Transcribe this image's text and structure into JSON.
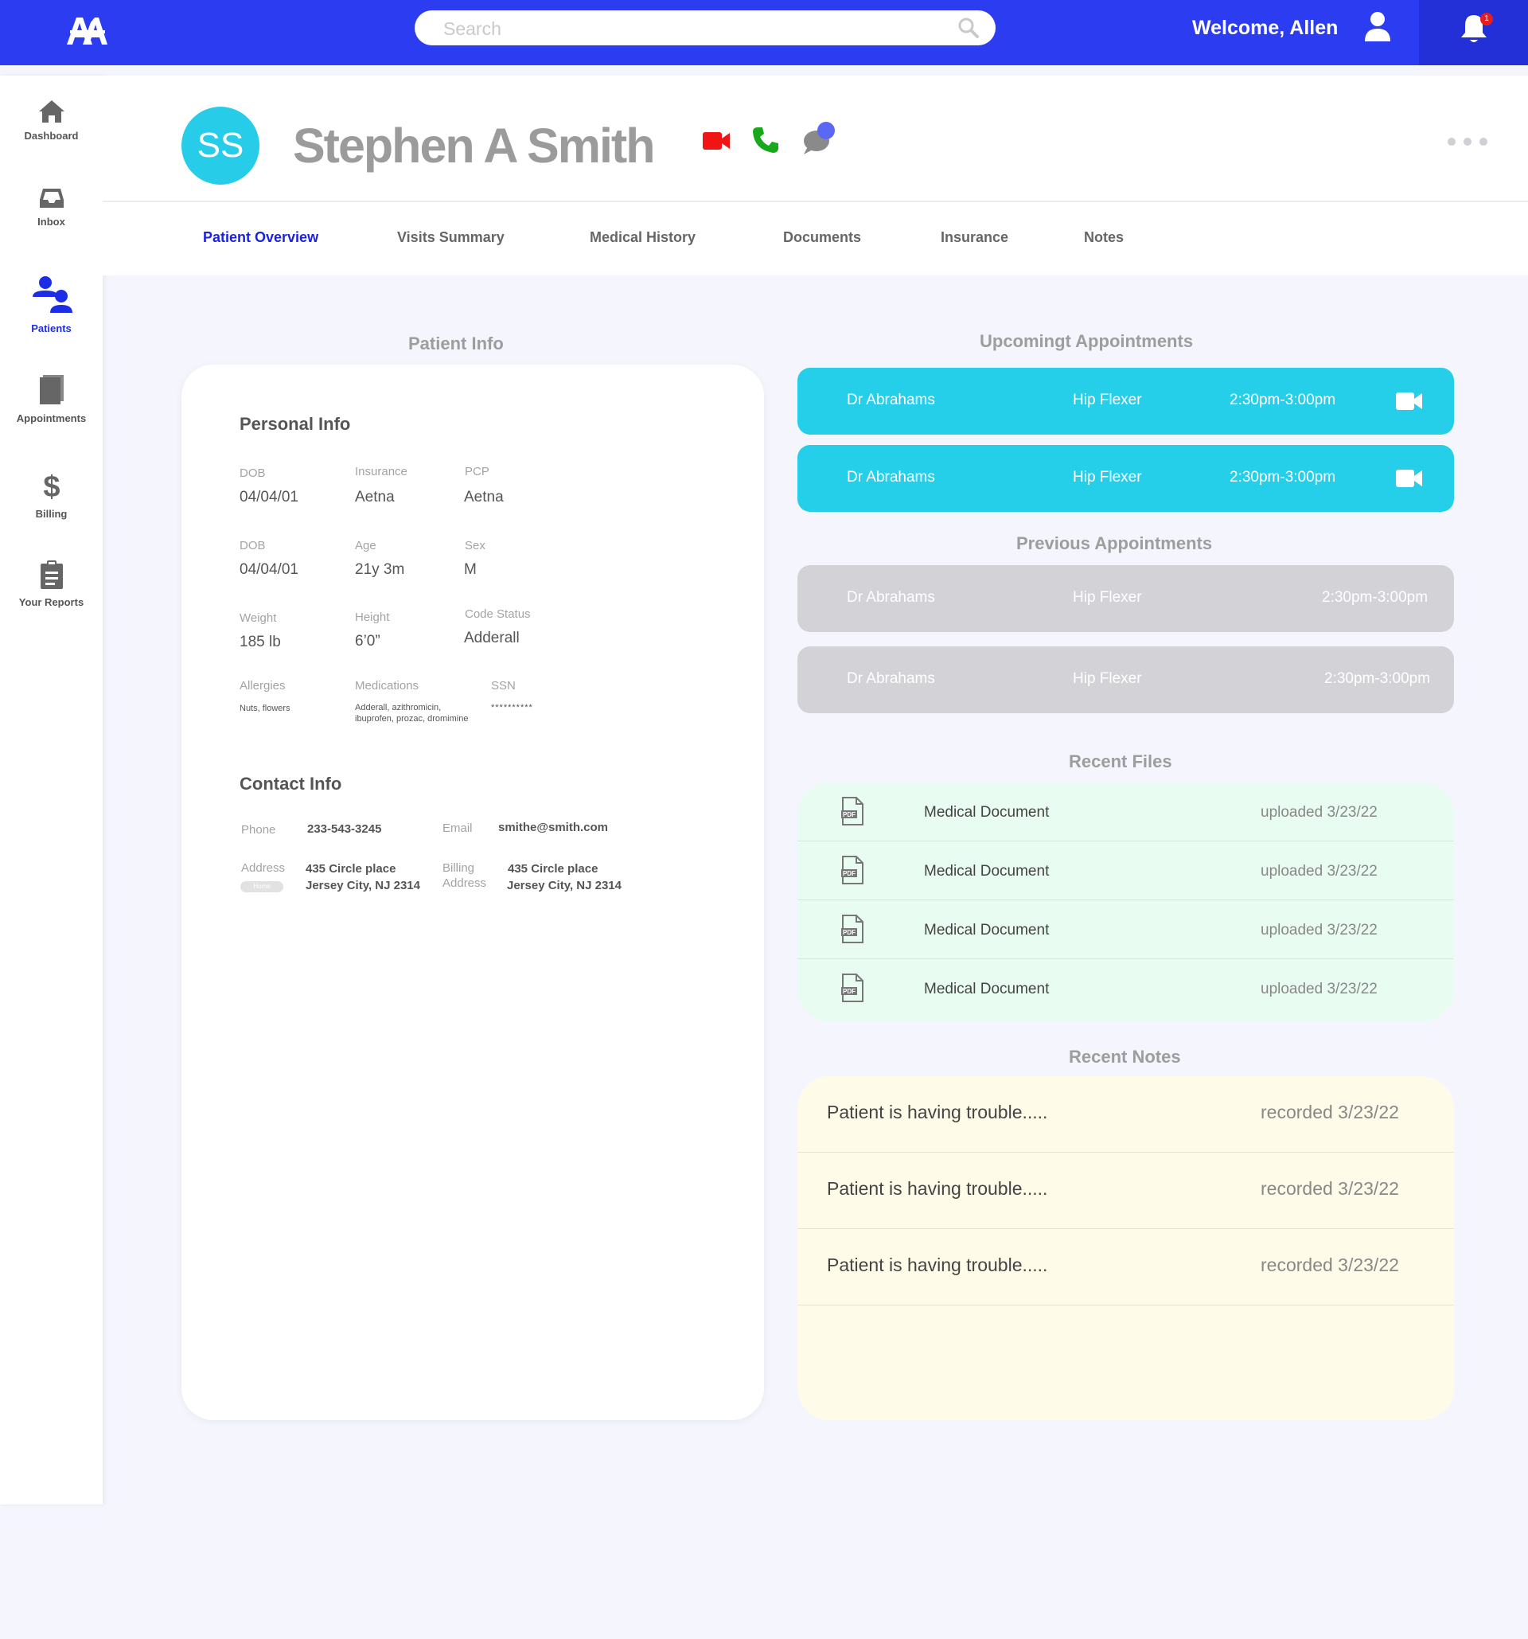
{
  "topbar": {
    "logo_text": "AA",
    "search_placeholder": "Search",
    "welcome": "Welcome, Allen",
    "notification_count": "1"
  },
  "sidebar": {
    "items": [
      {
        "label": "Dashboard",
        "icon": "home-icon"
      },
      {
        "label": "Inbox",
        "icon": "inbox-icon"
      },
      {
        "label": "Patients",
        "icon": "patients-icon",
        "active": true
      },
      {
        "label": "Appointments",
        "icon": "book-icon"
      },
      {
        "label": "Billing",
        "icon": "dollar-icon"
      },
      {
        "label": "Your Reports",
        "icon": "clipboard-icon"
      }
    ]
  },
  "patient": {
    "initials": "SS",
    "name": "Stephen A Smith"
  },
  "tabs": [
    {
      "label": "Patient Overview",
      "active": true
    },
    {
      "label": "Visits Summary"
    },
    {
      "label": "Medical History"
    },
    {
      "label": "Documents"
    },
    {
      "label": "Insurance"
    },
    {
      "label": "Notes"
    }
  ],
  "patient_info": {
    "title": "Patient Info",
    "personal_heading": "Personal Info",
    "row1": {
      "dob_label": "DOB",
      "dob": "04/04/01",
      "insurance_label": "Insurance",
      "insurance": "Aetna",
      "pcp_label": "PCP",
      "pcp": "Aetna"
    },
    "row2": {
      "dob_label": "DOB",
      "dob": "04/04/01",
      "age_label": "Age",
      "age": "21y 3m",
      "sex_label": "Sex",
      "sex": "M"
    },
    "row3": {
      "weight_label": "Weight",
      "weight": "185 lb",
      "height_label": "Height",
      "height": "6’0”",
      "code_status_label": "Code Status",
      "code_status": "Adderall"
    },
    "row4": {
      "allergies_label": "Allergies",
      "allergies": "Nuts, flowers",
      "medications_label": "Medications",
      "medications_line1": "Adderall, azithromicin,",
      "medications_line2": "ibuprofen, prozac, dromimine",
      "ssn_label": "SSN",
      "ssn": "**********"
    },
    "contact_heading": "Contact Info",
    "phone_label": "Phone",
    "phone": "233-543-3245",
    "email_label": "Email",
    "email": "smithe@smith.com",
    "address_label": "Address",
    "address_tag": "Home",
    "address_line1": "435 Circle place",
    "address_line2": "Jersey City, NJ 2314",
    "billing_label_line1": "Billing",
    "billing_label_line2": "Address",
    "billing_line1": "435 Circle place",
    "billing_line2": "Jersey City, NJ 2314"
  },
  "upcoming": {
    "title": "Upcomingt Appointments",
    "items": [
      {
        "doctor": "Dr Abrahams",
        "reason": "Hip Flexer",
        "time": "2:30pm-3:00pm"
      },
      {
        "doctor": "Dr Abrahams",
        "reason": "Hip Flexer",
        "time": "2:30pm-3:00pm"
      }
    ]
  },
  "previous": {
    "title": "Previous Appointments",
    "items": [
      {
        "doctor": "Dr Abrahams",
        "reason": "Hip Flexer",
        "time": "2:30pm-3:00pm"
      },
      {
        "doctor": "Dr Abrahams",
        "reason": "Hip Flexer",
        "time": "2:30pm-3:00pm"
      }
    ]
  },
  "files": {
    "title": "Recent Files",
    "icon_label": "PDF",
    "items": [
      {
        "name": "Medical Document",
        "date": "uploaded 3/23/22"
      },
      {
        "name": "Medical Document",
        "date": "uploaded 3/23/22"
      },
      {
        "name": "Medical Document",
        "date": "uploaded 3/23/22"
      },
      {
        "name": "Medical Document",
        "date": "uploaded 3/23/22"
      }
    ]
  },
  "notes": {
    "title": "Recent Notes",
    "items": [
      {
        "text": "Patient is having trouble.....",
        "date": "recorded 3/23/22"
      },
      {
        "text": "Patient is having trouble.....",
        "date": "recorded 3/23/22"
      },
      {
        "text": "Patient is having trouble.....",
        "date": "recorded 3/23/22"
      }
    ]
  },
  "colors": {
    "topbar": "#2c3cf0",
    "accent_blue": "#1a22e0",
    "upcoming_card": "#26cfe9",
    "previous_card": "#d3d3d7",
    "files_bg": "#e9fcf1",
    "notes_bg": "#fefce9",
    "video_red": "#f01414",
    "phone_green": "#19a81c"
  }
}
